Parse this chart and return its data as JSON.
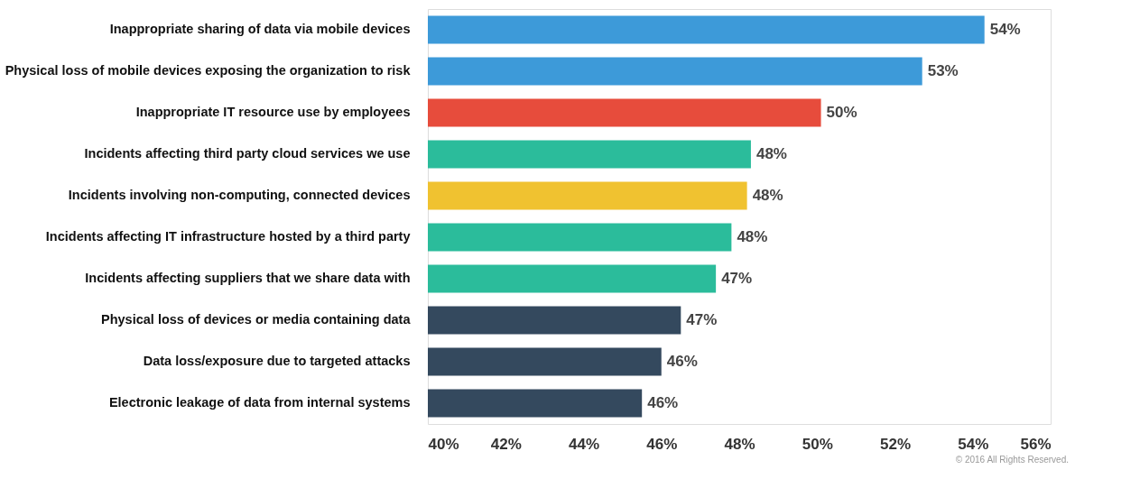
{
  "chart_data": {
    "type": "bar",
    "orientation": "horizontal",
    "categories": [
      "Inappropriate sharing of data via mobile devices",
      "Physical loss of mobile devices exposing the organization to risk",
      "Inappropriate IT resource use by employees",
      "Incidents affecting third party cloud services we use",
      "Incidents involving non-computing, connected devices",
      "Incidents affecting IT infrastructure hosted by a third party",
      "Incidents affecting suppliers that we share data with",
      "Physical loss of devices or media containing data",
      "Data loss/exposure due to targeted attacks",
      "Electronic leakage of data from internal systems"
    ],
    "values": [
      54.3,
      52.7,
      50.1,
      48.3,
      48.2,
      47.8,
      47.4,
      46.5,
      46.0,
      45.5
    ],
    "colors": [
      "#3d9ad9",
      "#3d9ad9",
      "#e74c3c",
      "#2bbc9b",
      "#f0c230",
      "#2bbc9b",
      "#2bbc9b",
      "#34495e",
      "#34495e",
      "#34495e"
    ],
    "value_labels": [
      "54%",
      "53%",
      "50%",
      "48%",
      "48%",
      "48%",
      "47%",
      "47%",
      "46%",
      "46%"
    ],
    "xlim": [
      40,
      56
    ],
    "xticks": [
      {
        "value": 40,
        "label": "40%"
      },
      {
        "value": 42,
        "label": "42%"
      },
      {
        "value": 44,
        "label": "44%"
      },
      {
        "value": 46,
        "label": "46%"
      },
      {
        "value": 48,
        "label": "48%"
      },
      {
        "value": 50,
        "label": "50%"
      },
      {
        "value": 52,
        "label": "52%"
      },
      {
        "value": 54,
        "label": "54%"
      },
      {
        "value": 56,
        "label": "56%"
      }
    ],
    "grid": false,
    "annotations": [
      "© 2016 All Rights Reserved."
    ]
  }
}
